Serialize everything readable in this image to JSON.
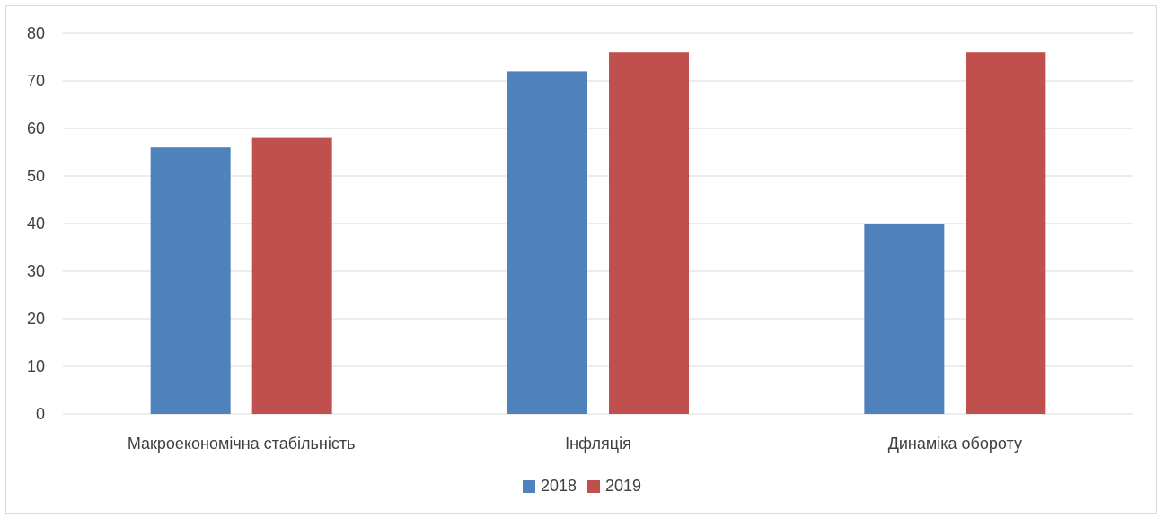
{
  "chart_data": {
    "type": "bar",
    "categories": [
      "Макроекономічна стабільність",
      "Інфляція",
      "Динаміка обороту"
    ],
    "series": [
      {
        "name": "2018",
        "values": [
          56,
          72,
          40
        ],
        "color": "#4f81bd"
      },
      {
        "name": "2019",
        "values": [
          58,
          76,
          76
        ],
        "color": "#c0504d"
      }
    ],
    "ylim": [
      0,
      80
    ],
    "yticks": [
      0,
      10,
      20,
      30,
      40,
      50,
      60,
      70,
      80
    ],
    "grid": true,
    "legend_position": "bottom-center",
    "title": "",
    "xlabel": "",
    "ylabel": ""
  },
  "colors": {
    "gridline": "#d9d9d9",
    "axis_text": "#404040"
  }
}
